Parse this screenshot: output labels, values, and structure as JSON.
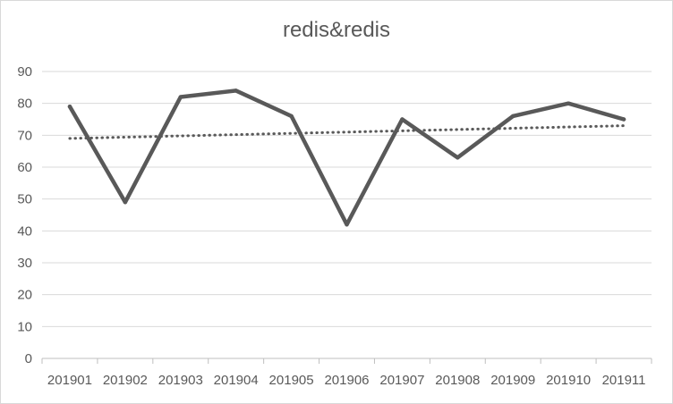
{
  "chart_data": {
    "type": "line",
    "title": "redis&redis",
    "categories": [
      "201901",
      "201902",
      "201903",
      "201904",
      "201905",
      "201906",
      "201907",
      "201908",
      "201909",
      "201910",
      "201911"
    ],
    "series": [
      {
        "values": [
          79,
          49,
          82,
          84,
          76,
          42,
          75,
          63,
          76,
          80,
          75
        ],
        "color": "#595959"
      }
    ],
    "trendline": {
      "style": "dotted",
      "start": 69,
      "end": 73,
      "color": "#595959"
    },
    "ylim": [
      0,
      90
    ],
    "yticks": [
      0,
      10,
      20,
      30,
      40,
      50,
      60,
      70,
      80,
      90
    ],
    "grid": true,
    "legend": "none"
  }
}
